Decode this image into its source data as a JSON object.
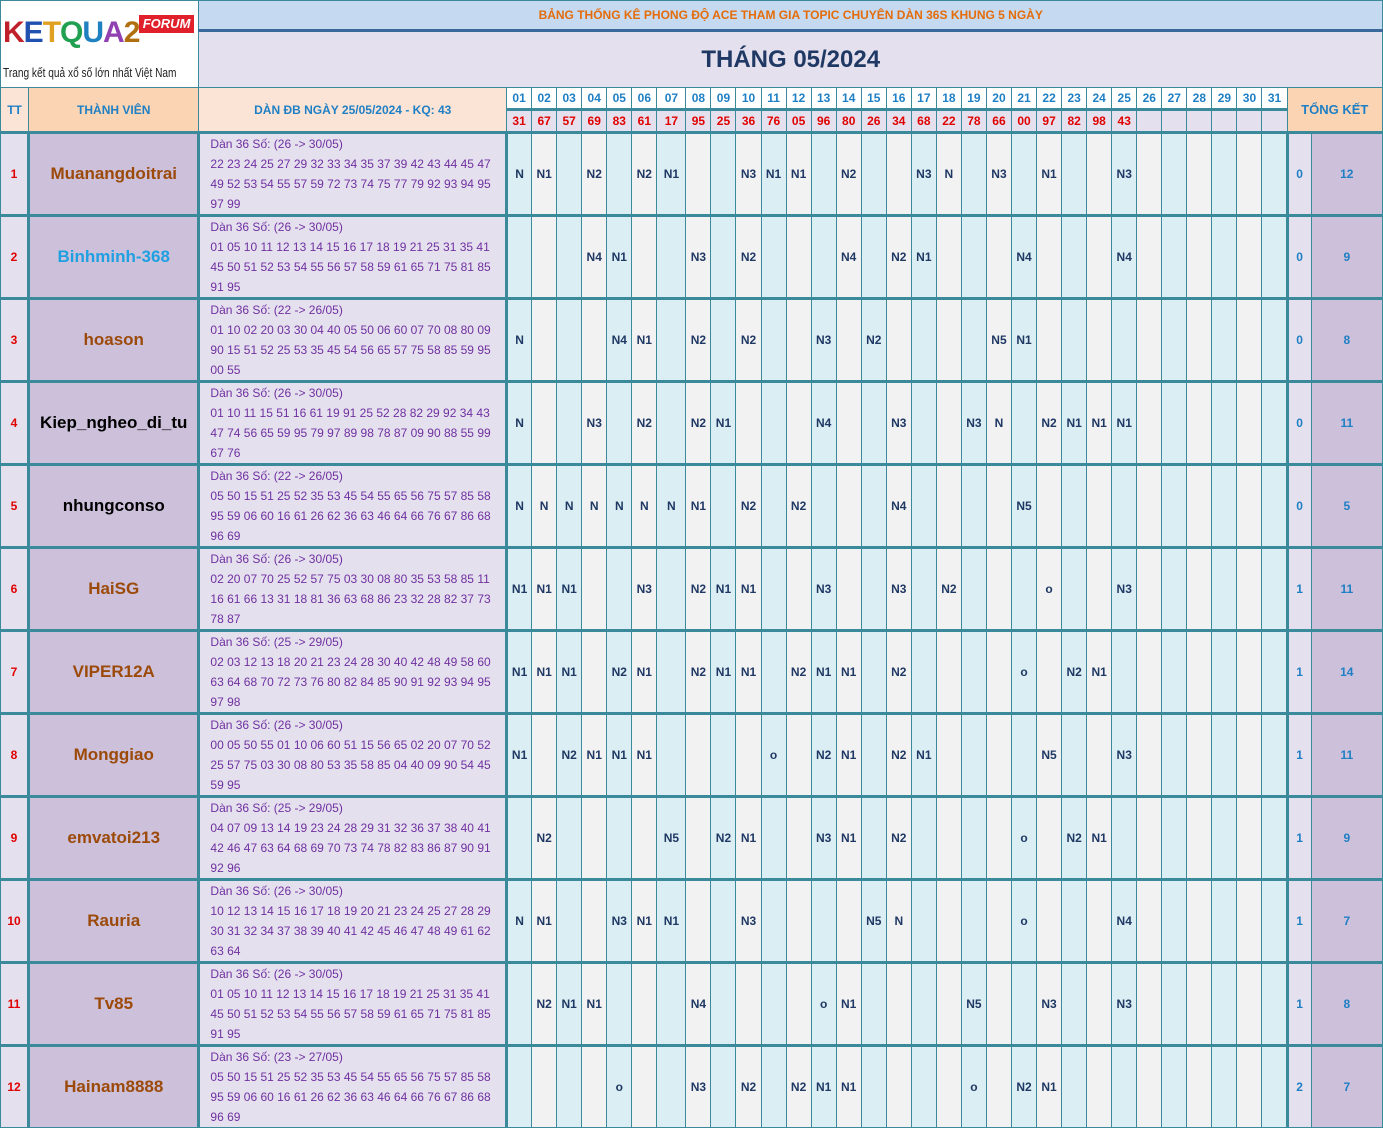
{
  "logo": {
    "text": "KETQUA2",
    "badge": "FORUM",
    "tagline": "Trang kết quả xổ số lớn nhất Việt Nam"
  },
  "title": "BẢNG THỐNG KÊ PHONG ĐỘ ACE THAM GIA TOPIC CHUYÊN DÀN 36S KHUNG 5 NGÀY",
  "month": "THÁNG 05/2024",
  "headers": {
    "tt": "TT",
    "member": "THÀNH VIÊN",
    "dan": "DÀN ĐB NGÀY 25/05/2024 - KQ: 43",
    "summary": "TỔNG KẾT"
  },
  "days": [
    "01",
    "02",
    "03",
    "04",
    "05",
    "06",
    "07",
    "08",
    "09",
    "10",
    "11",
    "12",
    "13",
    "14",
    "15",
    "16",
    "17",
    "18",
    "19",
    "20",
    "21",
    "22",
    "23",
    "24",
    "25",
    "26",
    "27",
    "28",
    "29",
    "30",
    "31"
  ],
  "results": [
    "31",
    "67",
    "57",
    "69",
    "83",
    "61",
    "17",
    "95",
    "25",
    "36",
    "76",
    "05",
    "96",
    "80",
    "26",
    "34",
    "68",
    "22",
    "78",
    "66",
    "00",
    "97",
    "82",
    "98",
    "43",
    "",
    "",
    "",
    "",
    "",
    ""
  ],
  "colors": {
    "name_default": "#9c4a0a",
    "name_blue": "#1fa0e0",
    "name_black": "#000000"
  },
  "rows": [
    {
      "tt": "1",
      "name": "Muanangdoitrai",
      "color": "#9c4a0a",
      "dan_title": "Dàn 36 Số: (26 -> 30/05)",
      "dan": "22 23 24 25 27 29 32 33 34 35 37 39 42 43 44 45 47 49 52 53 54 55 57 59 72 73 74 75 77 79 92 93 94 95 97 99",
      "cells": {
        "01": "N",
        "02": "N1",
        "04": "N2",
        "06": "N2",
        "07": "N1",
        "10": "N3",
        "11": "N1",
        "12": "N1",
        "14": "N2",
        "17": "N3",
        "18": "N",
        "20": "N3",
        "22": "N1",
        "25": "N3"
      },
      "s1": "0",
      "s2": "12"
    },
    {
      "tt": "2",
      "name": "Binhminh-368",
      "color": "#1fa0e0",
      "dan_title": "Dàn 36 Số: (26 -> 30/05)",
      "dan": "01 05 10 11 12 13 14 15 16 17 18 19 21 25 31 35 41 45 50 51 52 53 54 55 56 57 58 59 61 65 71 75 81 85 91 95",
      "cells": {
        "04": "N4",
        "05": "N1",
        "08": "N3",
        "10": "N2",
        "14": "N4",
        "16": "N2",
        "17": "N1",
        "21": "N4",
        "25": "N4"
      },
      "s1": "0",
      "s2": "9"
    },
    {
      "tt": "3",
      "name": "hoason",
      "color": "#9c4a0a",
      "dan_title": "Dàn 36 Số: (22 -> 26/05)",
      "dan": "01 10 02 20 03 30 04 40 05 50 06 60 07 70 08 80 09 90 15 51 52 25 53 35 45 54 56 65 57 75 58 85 59 95 00 55",
      "cells": {
        "01": "N",
        "05": "N4",
        "06": "N1",
        "08": "N2",
        "10": "N2",
        "13": "N3",
        "15": "N2",
        "20": "N5",
        "21": "N1"
      },
      "s1": "0",
      "s2": "8"
    },
    {
      "tt": "4",
      "name": "Kiep_ngheo_di_tu",
      "color": "#000000",
      "dan_title": "Dàn 36 Số: (26 -> 30/05)",
      "dan": "01 10 11 15 51 16 61 19 91 25 52 28 82 29 92 34 43 47 74 56 65 59 95 79 97 89 98 78 87 09 90 88 55 99 67 76",
      "cells": {
        "01": "N",
        "04": "N3",
        "06": "N2",
        "08": "N2",
        "09": "N1",
        "13": "N4",
        "16": "N3",
        "19": "N3",
        "20": "N",
        "22": "N2",
        "23": "N1",
        "24": "N1",
        "25": "N1"
      },
      "s1": "0",
      "s2": "11"
    },
    {
      "tt": "5",
      "name": "nhungconso",
      "color": "#000000",
      "dan_title": "Dàn 36 Số: (22 -> 26/05)",
      "dan": "05 50 15 51 25 52 35 53 45 54 55 65 56 75 57 85 58 95 59 06 60 16 61 26 62 36 63 46 64 66 76 67 86 68 96 69",
      "cells": {
        "01": "N",
        "02": "N",
        "03": "N",
        "04": "N",
        "05": "N",
        "06": "N",
        "07": "N",
        "08": "N1",
        "10": "N2",
        "12": "N2",
        "16": "N4",
        "21": "N5"
      },
      "s1": "0",
      "s2": "5"
    },
    {
      "tt": "6",
      "name": "HaiSG",
      "color": "#9c4a0a",
      "dan_title": "Dàn 36 Số: (26 -> 30/05)",
      "dan": "02 20 07 70 25 52 57 75 03 30 08 80 35 53 58 85 11 16 61 66 13 31 18 81 36 63 68 86 23 32 28 82 37 73 78 87",
      "cells": {
        "01": "N1",
        "02": "N1",
        "03": "N1",
        "06": "N3",
        "08": "N2",
        "09": "N1",
        "10": "N1",
        "13": "N3",
        "16": "N3",
        "18": "N2",
        "22": "o",
        "25": "N3"
      },
      "s1": "1",
      "s2": "11"
    },
    {
      "tt": "7",
      "name": "VIPER12A",
      "color": "#9c4a0a",
      "dan_title": "Dàn 36 Số: (25 -> 29/05)",
      "dan": "02 03 12 13 18 20 21 23 24 28 30 40 42 48 49 58 60 63 64 68 70 72 73 76 80 82 84 85 90 91 92 93 94 95 97 98",
      "cells": {
        "01": "N1",
        "02": "N1",
        "03": "N1",
        "05": "N2",
        "06": "N1",
        "08": "N2",
        "09": "N1",
        "10": "N1",
        "12": "N2",
        "13": "N1",
        "14": "N1",
        "16": "N2",
        "21": "o",
        "23": "N2",
        "24": "N1"
      },
      "s1": "1",
      "s2": "14"
    },
    {
      "tt": "8",
      "name": "Monggiao",
      "color": "#9c4a0a",
      "dan_title": "Dàn 36 Số: (26 -> 30/05)",
      "dan": "00 05 50 55 01 10 06 60 51 15 56 65 02 20 07 70 52 25 57 75 03 30 08 80 53 35 58 85 04 40 09 90 54 45 59 95",
      "cells": {
        "01": "N1",
        "03": "N2",
        "04": "N1",
        "05": "N1",
        "06": "N1",
        "11": "o",
        "13": "N2",
        "14": "N1",
        "16": "N2",
        "17": "N1",
        "22": "N5",
        "25": "N3"
      },
      "s1": "1",
      "s2": "11"
    },
    {
      "tt": "9",
      "name": "emvatoi213",
      "color": "#9c4a0a",
      "dan_title": "Dàn 36 Số: (25 -> 29/05)",
      "dan": "04 07 09 13 14 19 23 24 28 29 31 32 36 37 38 40 41 42 46 47 63 64 68 69 70 73 74 78 82 83 86 87 90 91 92 96",
      "cells": {
        "02": "N2",
        "07": "N5",
        "09": "N2",
        "10": "N1",
        "13": "N3",
        "14": "N1",
        "16": "N2",
        "21": "o",
        "23": "N2",
        "24": "N1"
      },
      "s1": "1",
      "s2": "9"
    },
    {
      "tt": "10",
      "name": "Rauria",
      "color": "#9c4a0a",
      "dan_title": "Dàn 36 Số: (26 -> 30/05)",
      "dan": "10 12 13 14 15 16 17 18 19 20 21 23 24 25 27 28 29 30 31 32 34 37 38 39 40 41 42 45 46 47 48 49 61 62 63 64",
      "cells": {
        "01": "N",
        "02": "N1",
        "05": "N3",
        "06": "N1",
        "07": "N1",
        "10": "N3",
        "15": "N5",
        "16": "N",
        "21": "o",
        "25": "N4"
      },
      "s1": "1",
      "s2": "7"
    },
    {
      "tt": "11",
      "name": "Tv85",
      "color": "#9c4a0a",
      "dan_title": "Dàn 36 Số: (26 -> 30/05)",
      "dan": "01 05 10 11 12 13 14 15 16 17 18 19 21 25 31 35 41 45 50 51 52 53 54 55 56 57 58 59 61 65 71 75 81 85 91 95",
      "cells": {
        "02": "N2",
        "03": "N1",
        "04": "N1",
        "08": "N4",
        "13": "o",
        "14": "N1",
        "19": "N5",
        "22": "N3",
        "25": "N3"
      },
      "s1": "1",
      "s2": "8"
    },
    {
      "tt": "12",
      "name": "Hainam8888",
      "color": "#9c4a0a",
      "dan_title": "Dàn 36 Số: (23 -> 27/05)",
      "dan": "05 50 15 51 25 52 35 53 45 54 55 65 56 75 57 85 58 95 59 06 60 16 61 26 62 36 63 46 64 66 76 67 86 68 96 69",
      "cells": {
        "05": "o",
        "08": "N3",
        "10": "N2",
        "12": "N2",
        "13": "N1",
        "14": "N1",
        "19": "o",
        "21": "N2",
        "22": "N1"
      },
      "s1": "2",
      "s2": "7"
    }
  ]
}
